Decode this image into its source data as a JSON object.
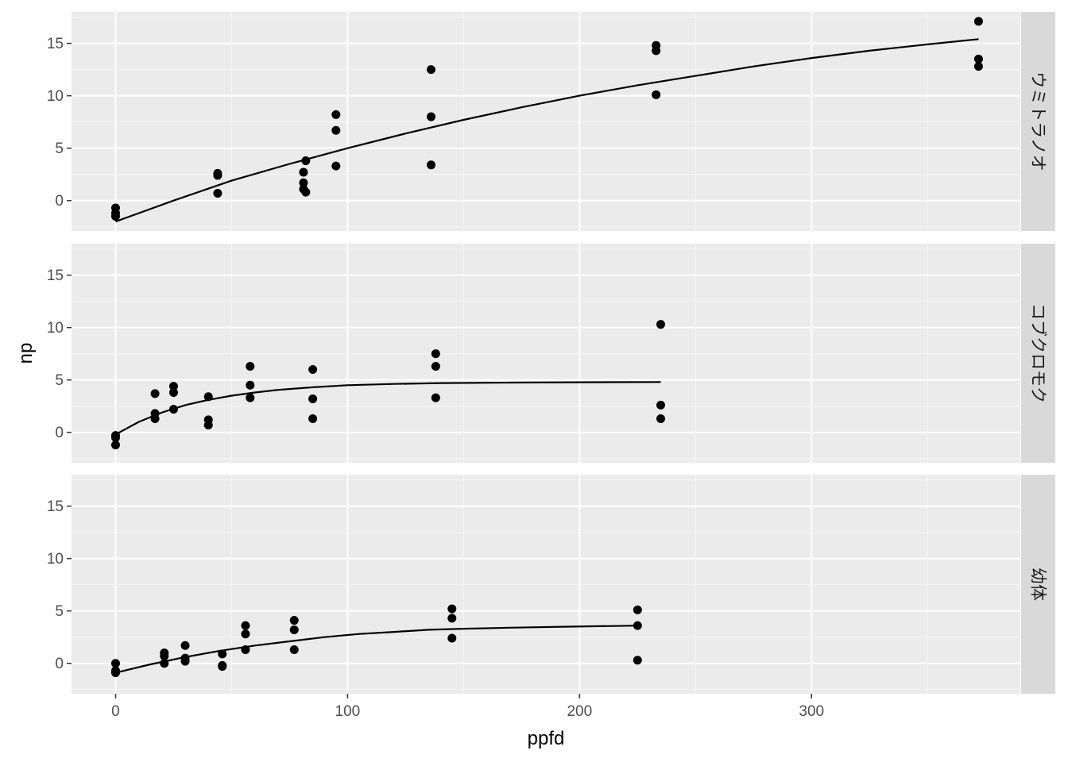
{
  "chart_data": {
    "type": "scatter",
    "layout": "facet_rows",
    "fit_line": true,
    "xlabel": "ppfd",
    "ylabel": "np",
    "xlim": [
      -19,
      390
    ],
    "ylim": [
      -2.9,
      18
    ],
    "x_ticks": [
      0,
      100,
      200,
      300
    ],
    "y_ticks": [
      0,
      5,
      10,
      15
    ],
    "grid": true,
    "colors": {
      "panel": "#ebebeb",
      "strip": "#d9d9d9",
      "points": "#000000",
      "line": "#000000"
    },
    "facets": [
      {
        "label": "ウミトラノオ",
        "points": [
          [
            0,
            -0.7
          ],
          [
            0,
            -1.2
          ],
          [
            0,
            -1.5
          ],
          [
            44,
            2.6
          ],
          [
            44,
            2.4
          ],
          [
            44,
            0.7
          ],
          [
            81,
            2.7
          ],
          [
            81,
            1.7
          ],
          [
            81,
            1.1
          ],
          [
            82,
            3.8
          ],
          [
            82,
            0.8
          ],
          [
            95,
            8.2
          ],
          [
            95,
            6.7
          ],
          [
            95,
            3.3
          ],
          [
            136,
            12.5
          ],
          [
            136,
            8.0
          ],
          [
            136,
            3.4
          ],
          [
            233,
            14.8
          ],
          [
            233,
            14.3
          ],
          [
            233,
            10.1
          ],
          [
            372,
            17.1
          ],
          [
            372,
            13.5
          ],
          [
            372,
            12.8
          ]
        ],
        "fit": [
          [
            0,
            -2.0
          ],
          [
            25,
            0.0
          ],
          [
            50,
            1.9
          ],
          [
            75,
            3.5
          ],
          [
            100,
            5.0
          ],
          [
            125,
            6.4
          ],
          [
            150,
            7.7
          ],
          [
            175,
            8.9
          ],
          [
            200,
            10.0
          ],
          [
            225,
            11.0
          ],
          [
            250,
            11.9
          ],
          [
            275,
            12.8
          ],
          [
            300,
            13.6
          ],
          [
            325,
            14.3
          ],
          [
            350,
            14.9
          ],
          [
            372,
            15.4
          ]
        ]
      },
      {
        "label": "コブクロモク",
        "points": [
          [
            0,
            -0.3
          ],
          [
            0,
            -0.5
          ],
          [
            0,
            -1.2
          ],
          [
            17,
            3.7
          ],
          [
            17,
            1.8
          ],
          [
            17,
            1.3
          ],
          [
            25,
            4.4
          ],
          [
            25,
            3.8
          ],
          [
            25,
            2.2
          ],
          [
            40,
            3.4
          ],
          [
            40,
            1.2
          ],
          [
            40,
            0.7
          ],
          [
            58,
            6.3
          ],
          [
            58,
            4.5
          ],
          [
            58,
            3.3
          ],
          [
            85,
            6.0
          ],
          [
            85,
            3.2
          ],
          [
            85,
            1.3
          ],
          [
            138,
            7.5
          ],
          [
            138,
            6.3
          ],
          [
            138,
            3.3
          ],
          [
            235,
            10.3
          ],
          [
            235,
            2.6
          ],
          [
            235,
            1.3
          ]
        ],
        "fit": [
          [
            0,
            -0.2
          ],
          [
            10,
            1.0
          ],
          [
            20,
            1.9
          ],
          [
            30,
            2.6
          ],
          [
            40,
            3.1
          ],
          [
            50,
            3.5
          ],
          [
            60,
            3.8
          ],
          [
            70,
            4.05
          ],
          [
            85,
            4.3
          ],
          [
            100,
            4.5
          ],
          [
            120,
            4.62
          ],
          [
            140,
            4.7
          ],
          [
            170,
            4.75
          ],
          [
            200,
            4.78
          ],
          [
            235,
            4.8
          ]
        ]
      },
      {
        "label": "幼体",
        "points": [
          [
            0,
            0.0
          ],
          [
            0,
            -0.7
          ],
          [
            0,
            -0.9
          ],
          [
            21,
            1.0
          ],
          [
            21,
            0.7
          ],
          [
            21,
            0.0
          ],
          [
            30,
            1.7
          ],
          [
            30,
            0.5
          ],
          [
            30,
            0.2
          ],
          [
            46,
            0.9
          ],
          [
            46,
            -0.2
          ],
          [
            46,
            -0.3
          ],
          [
            56,
            3.6
          ],
          [
            56,
            2.8
          ],
          [
            56,
            1.3
          ],
          [
            77,
            4.1
          ],
          [
            77,
            3.2
          ],
          [
            77,
            1.3
          ],
          [
            145,
            5.2
          ],
          [
            145,
            4.3
          ],
          [
            145,
            2.4
          ],
          [
            225,
            5.1
          ],
          [
            225,
            3.6
          ],
          [
            225,
            0.3
          ]
        ],
        "fit": [
          [
            0,
            -0.9
          ],
          [
            15,
            -0.1
          ],
          [
            30,
            0.6
          ],
          [
            45,
            1.2
          ],
          [
            60,
            1.7
          ],
          [
            75,
            2.1
          ],
          [
            90,
            2.5
          ],
          [
            105,
            2.8
          ],
          [
            120,
            3.0
          ],
          [
            135,
            3.2
          ],
          [
            150,
            3.3
          ],
          [
            170,
            3.4
          ],
          [
            195,
            3.5
          ],
          [
            225,
            3.6
          ]
        ]
      }
    ]
  }
}
